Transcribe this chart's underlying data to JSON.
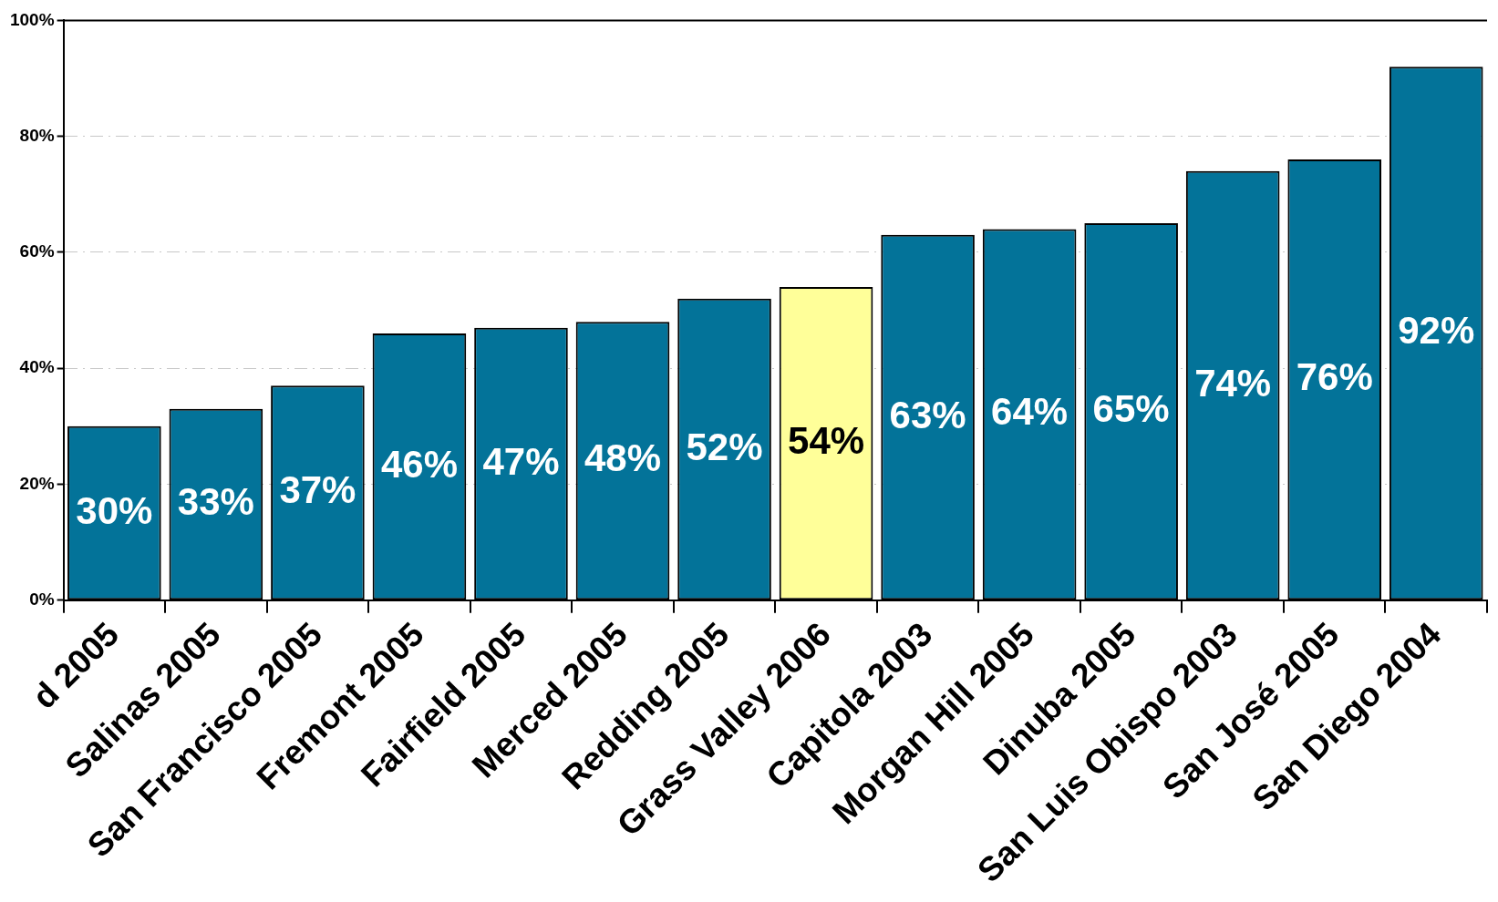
{
  "chart_data": {
    "type": "bar",
    "categories": [
      "d 2005",
      "Salinas 2005",
      "San Francisco 2005",
      "Fremont 2005",
      "Fairfield 2005",
      "Merced 2005",
      "Redding 2005",
      "Grass Valley 2006",
      "Capitola 2003",
      "Morgan Hill 2005",
      "Dinuba 2005",
      "San Luis Obispo 2003",
      "San José 2005",
      "San Diego 2004"
    ],
    "values": [
      30,
      33,
      37,
      46,
      47,
      48,
      52,
      54,
      63,
      64,
      65,
      74,
      76,
      92
    ],
    "colors": [
      "#037399",
      "#037399",
      "#037399",
      "#037399",
      "#037399",
      "#037399",
      "#037399",
      "#ffff99",
      "#037399",
      "#037399",
      "#037399",
      "#037399",
      "#037399",
      "#037399"
    ],
    "value_labels": [
      "30%",
      "33%",
      "37%",
      "46%",
      "47%",
      "48%",
      "52%",
      "54%",
      "63%",
      "64%",
      "65%",
      "74%",
      "76%",
      "92%"
    ],
    "ylim": [
      0,
      100
    ],
    "yticks": [
      {
        "value": 0,
        "label": "0%"
      },
      {
        "value": 20,
        "label": "20%"
      },
      {
        "value": 40,
        "label": "40%"
      },
      {
        "value": 60,
        "label": "60%"
      },
      {
        "value": 80,
        "label": "80%"
      },
      {
        "value": 100,
        "label": "100%"
      }
    ],
    "grid": "y",
    "legend": false
  }
}
